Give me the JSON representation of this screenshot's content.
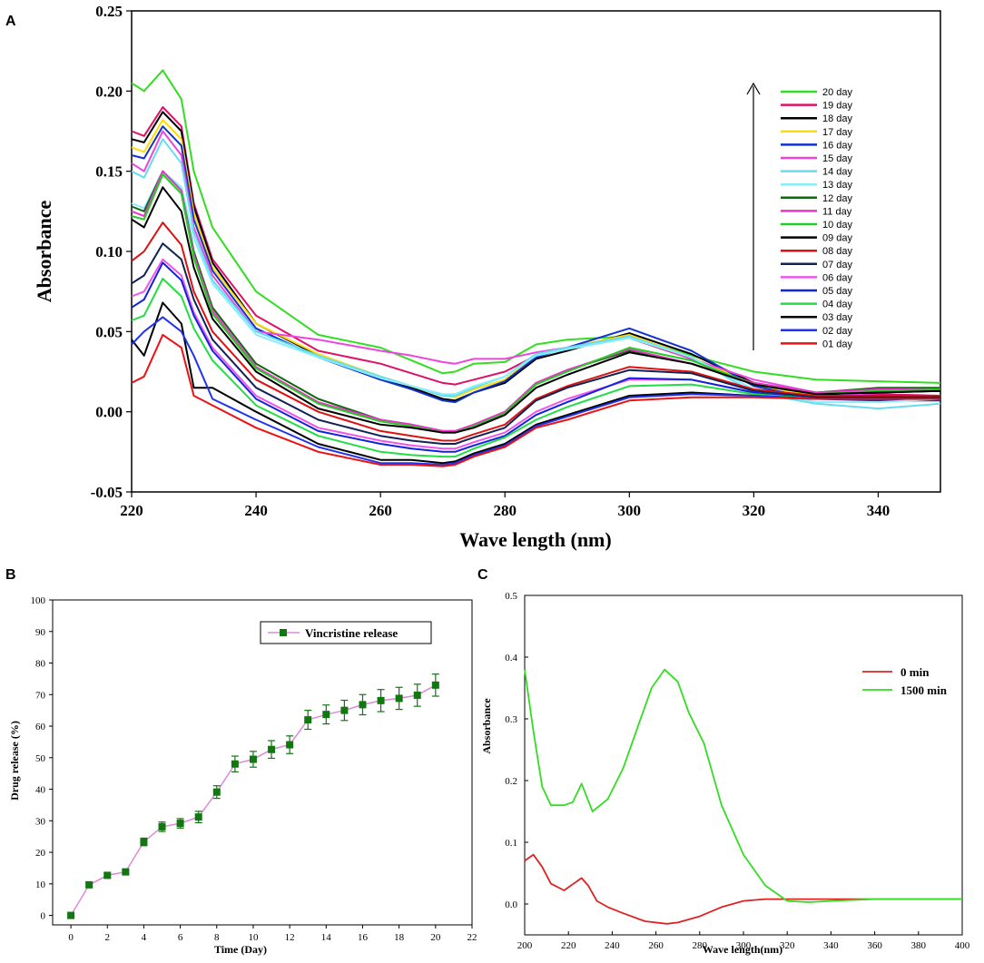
{
  "panels": {
    "a": "A",
    "b": "B",
    "c": "C"
  },
  "chart_data": [
    {
      "type": "line",
      "panel": "A",
      "title": "",
      "xlabel": "Wave length (nm)",
      "ylabel": "Absorbance",
      "xlim": [
        220,
        350
      ],
      "ylim": [
        -0.05,
        0.25
      ],
      "xticks": [
        220,
        240,
        260,
        280,
        300,
        320,
        340
      ],
      "yticks": [
        "-0.05",
        "0.00",
        "0.05",
        "0.10",
        "0.15",
        "0.20",
        "0.25"
      ],
      "annotation": "arrow indicating increasing absorbance with time",
      "x": [
        220,
        222,
        225,
        228,
        230,
        233,
        240,
        250,
        260,
        265,
        270,
        272,
        275,
        280,
        285,
        290,
        300,
        310,
        320,
        330,
        340,
        350
      ],
      "series": [
        {
          "name": "20 day",
          "color": "#33dd22",
          "values": [
            0.205,
            0.2,
            0.213,
            0.195,
            0.15,
            0.115,
            0.075,
            0.048,
            0.04,
            0.032,
            0.024,
            0.025,
            0.03,
            0.031,
            0.042,
            0.045,
            0.047,
            0.035,
            0.025,
            0.02,
            0.019,
            0.018
          ]
        },
        {
          "name": "19 day",
          "color": "#dd1166",
          "values": [
            0.175,
            0.172,
            0.19,
            0.178,
            0.13,
            0.095,
            0.06,
            0.038,
            0.03,
            0.024,
            0.018,
            0.017,
            0.02,
            0.025,
            0.035,
            0.04,
            0.046,
            0.033,
            0.018,
            0.012,
            0.011,
            0.01
          ]
        },
        {
          "name": "18 day",
          "color": "#000000",
          "values": [
            0.17,
            0.168,
            0.187,
            0.175,
            0.128,
            0.093,
            0.055,
            0.035,
            0.02,
            0.015,
            0.008,
            0.007,
            0.012,
            0.018,
            0.033,
            0.038,
            0.049,
            0.036,
            0.018,
            0.01,
            0.012,
            0.013
          ]
        },
        {
          "name": "17 day",
          "color": "#ffdd00",
          "values": [
            0.165,
            0.162,
            0.182,
            0.17,
            0.124,
            0.09,
            0.055,
            0.036,
            0.022,
            0.016,
            0.01,
            0.009,
            0.014,
            0.02,
            0.035,
            0.04,
            0.048,
            0.034,
            0.017,
            0.01,
            0.01,
            0.009
          ]
        },
        {
          "name": "16 day",
          "color": "#1133cc",
          "values": [
            0.16,
            0.158,
            0.178,
            0.166,
            0.12,
            0.088,
            0.052,
            0.034,
            0.02,
            0.014,
            0.007,
            0.006,
            0.012,
            0.019,
            0.034,
            0.04,
            0.052,
            0.038,
            0.016,
            0.008,
            0.007,
            0.007
          ]
        },
        {
          "name": "15 day",
          "color": "#ee44dd",
          "values": [
            0.155,
            0.15,
            0.175,
            0.16,
            0.115,
            0.085,
            0.05,
            0.045,
            0.038,
            0.035,
            0.031,
            0.03,
            0.033,
            0.033,
            0.037,
            0.04,
            0.047,
            0.033,
            0.02,
            0.012,
            0.01,
            0.01
          ]
        },
        {
          "name": "14 day",
          "color": "#66ddee",
          "values": [
            0.15,
            0.146,
            0.17,
            0.155,
            0.112,
            0.082,
            0.05,
            0.035,
            0.022,
            0.016,
            0.01,
            0.01,
            0.015,
            0.022,
            0.036,
            0.04,
            0.047,
            0.034,
            0.012,
            0.005,
            0.002,
            0.005
          ]
        },
        {
          "name": "13 day",
          "color": "#88eeff",
          "values": [
            0.13,
            0.127,
            0.15,
            0.14,
            0.108,
            0.08,
            0.048,
            0.034,
            0.021,
            0.016,
            0.011,
            0.011,
            0.016,
            0.022,
            0.035,
            0.039,
            0.046,
            0.034,
            0.014,
            0.006,
            0.006,
            0.008
          ]
        },
        {
          "name": "12 day",
          "color": "#116611",
          "values": [
            0.128,
            0.125,
            0.15,
            0.138,
            0.1,
            0.065,
            0.03,
            0.008,
            -0.005,
            -0.008,
            -0.012,
            -0.012,
            -0.008,
            0.0,
            0.018,
            0.026,
            0.038,
            0.03,
            0.018,
            0.012,
            0.015,
            0.015
          ]
        },
        {
          "name": "11 day",
          "color": "#ee33cc",
          "values": [
            0.125,
            0.122,
            0.15,
            0.138,
            0.098,
            0.063,
            0.028,
            0.006,
            -0.005,
            -0.008,
            -0.012,
            -0.012,
            -0.008,
            0.0,
            0.018,
            0.026,
            0.039,
            0.03,
            0.018,
            0.012,
            0.014,
            0.014
          ]
        },
        {
          "name": "10 day",
          "color": "#22cc22",
          "values": [
            0.122,
            0.12,
            0.148,
            0.136,
            0.096,
            0.061,
            0.027,
            0.005,
            -0.006,
            -0.009,
            -0.013,
            -0.013,
            -0.009,
            -0.001,
            0.017,
            0.025,
            0.04,
            0.032,
            0.017,
            0.011,
            0.013,
            0.014
          ]
        },
        {
          "name": "09 day",
          "color": "#000000",
          "values": [
            0.12,
            0.115,
            0.14,
            0.125,
            0.09,
            0.058,
            0.025,
            0.002,
            -0.008,
            -0.01,
            -0.013,
            -0.013,
            -0.01,
            -0.002,
            0.015,
            0.023,
            0.037,
            0.03,
            0.017,
            0.011,
            0.012,
            0.013
          ]
        },
        {
          "name": "08 day",
          "color": "#dd1111",
          "values": [
            0.094,
            0.1,
            0.118,
            0.104,
            0.075,
            0.05,
            0.02,
            0.0,
            -0.012,
            -0.015,
            -0.018,
            -0.018,
            -0.014,
            -0.008,
            0.008,
            0.016,
            0.028,
            0.025,
            0.014,
            0.01,
            0.01,
            0.01
          ]
        },
        {
          "name": "07 day",
          "color": "#112255",
          "values": [
            0.08,
            0.085,
            0.105,
            0.095,
            0.07,
            0.045,
            0.015,
            -0.005,
            -0.015,
            -0.018,
            -0.02,
            -0.02,
            -0.016,
            -0.01,
            0.007,
            0.015,
            0.026,
            0.024,
            0.013,
            0.009,
            0.009,
            0.009
          ]
        },
        {
          "name": "06 day",
          "color": "#ee55ee",
          "values": [
            0.072,
            0.075,
            0.095,
            0.085,
            0.062,
            0.04,
            0.01,
            -0.01,
            -0.018,
            -0.021,
            -0.023,
            -0.023,
            -0.019,
            -0.013,
            0.0,
            0.008,
            0.02,
            0.02,
            0.012,
            0.008,
            0.008,
            0.008
          ]
        },
        {
          "name": "05 day",
          "color": "#1122dd",
          "values": [
            0.065,
            0.07,
            0.093,
            0.082,
            0.06,
            0.038,
            0.008,
            -0.012,
            -0.02,
            -0.023,
            -0.025,
            -0.025,
            -0.021,
            -0.015,
            -0.002,
            0.006,
            0.021,
            0.02,
            0.012,
            0.008,
            0.008,
            0.008
          ]
        },
        {
          "name": "04 day",
          "color": "#22dd44",
          "values": [
            0.057,
            0.06,
            0.083,
            0.072,
            0.052,
            0.032,
            0.004,
            -0.015,
            -0.025,
            -0.027,
            -0.028,
            -0.028,
            -0.023,
            -0.016,
            -0.005,
            0.003,
            0.016,
            0.017,
            0.011,
            0.008,
            0.008,
            0.008
          ]
        },
        {
          "name": "03 day",
          "color": "#000000",
          "values": [
            0.045,
            0.035,
            0.068,
            0.055,
            0.015,
            0.015,
            0.0,
            -0.02,
            -0.03,
            -0.03,
            -0.032,
            -0.031,
            -0.026,
            -0.02,
            -0.008,
            -0.002,
            0.01,
            0.012,
            0.01,
            0.008,
            0.008,
            0.008
          ]
        },
        {
          "name": "02 day",
          "color": "#2233ee",
          "values": [
            0.042,
            0.05,
            0.059,
            0.05,
            0.035,
            0.008,
            -0.005,
            -0.022,
            -0.032,
            -0.032,
            -0.033,
            -0.032,
            -0.027,
            -0.021,
            -0.009,
            -0.003,
            0.009,
            0.011,
            0.01,
            0.008,
            0.008,
            0.008
          ]
        },
        {
          "name": "01 day",
          "color": "#ee1111",
          "values": [
            0.018,
            0.022,
            0.048,
            0.04,
            0.01,
            0.004,
            -0.01,
            -0.025,
            -0.033,
            -0.033,
            -0.034,
            -0.033,
            -0.028,
            -0.022,
            -0.01,
            -0.005,
            0.007,
            0.009,
            0.009,
            0.008,
            0.008,
            0.008
          ]
        }
      ]
    },
    {
      "type": "line",
      "panel": "B",
      "title": "",
      "xlabel": "Time (Day)",
      "ylabel": "Drug release (%)",
      "xlim": [
        -1,
        22
      ],
      "ylim": [
        -3,
        100
      ],
      "xticks": [
        0,
        2,
        4,
        6,
        8,
        10,
        12,
        14,
        16,
        18,
        20,
        22
      ],
      "yticks": [
        0,
        10,
        20,
        30,
        40,
        50,
        60,
        70,
        80,
        90,
        100
      ],
      "legend": "top-right",
      "series": [
        {
          "name": "Vincristine release",
          "line_color": "#dd88dd",
          "marker_color": "#117711",
          "x": [
            0,
            1,
            2,
            3,
            4,
            5,
            6,
            7,
            8,
            9,
            10,
            11,
            12,
            13,
            14,
            15,
            16,
            17,
            18,
            19,
            20
          ],
          "values": [
            0,
            9.7,
            12.7,
            13.8,
            23.3,
            28.1,
            29.2,
            31.2,
            39.1,
            48.0,
            49.5,
            52.6,
            54.1,
            62.0,
            63.7,
            65.0,
            66.8,
            68.1,
            68.8,
            69.8,
            73.0
          ],
          "errors": [
            0,
            0.6,
            0.7,
            0.8,
            1.2,
            1.5,
            1.5,
            1.8,
            2.0,
            2.5,
            2.5,
            2.8,
            2.8,
            3.0,
            3.0,
            3.2,
            3.2,
            3.5,
            3.5,
            3.5,
            3.5
          ]
        }
      ]
    },
    {
      "type": "line",
      "panel": "C",
      "title": "",
      "xlabel": "Wave length(nm)",
      "ylabel": "Absorbance",
      "xlim": [
        200,
        400
      ],
      "ylim": [
        -0.05,
        0.5
      ],
      "xticks": [
        200,
        220,
        240,
        260,
        280,
        300,
        320,
        340,
        360,
        380,
        400
      ],
      "yticks": [
        "0.0",
        "0.1",
        "0.2",
        "0.3",
        "0.4",
        "0.5"
      ],
      "legend": "top-right",
      "series": [
        {
          "name": "0 min",
          "color": "#dd2222",
          "x": [
            200,
            204,
            208,
            212,
            218,
            222,
            226,
            229,
            233,
            238,
            245,
            255,
            265,
            270,
            280,
            290,
            300,
            310,
            320,
            340,
            360,
            380,
            400
          ],
          "values": [
            0.07,
            0.08,
            0.06,
            0.033,
            0.022,
            0.032,
            0.042,
            0.03,
            0.005,
            -0.005,
            -0.015,
            -0.028,
            -0.032,
            -0.03,
            -0.02,
            -0.005,
            0.005,
            0.008,
            0.008,
            0.008,
            0.008,
            0.008,
            0.008
          ]
        },
        {
          "name": "1500 min",
          "color": "#33dd22",
          "x": [
            200,
            204,
            208,
            212,
            218,
            222,
            226,
            231,
            238,
            245,
            252,
            258,
            264,
            270,
            275,
            282,
            290,
            300,
            310,
            320,
            330,
            340,
            360,
            380,
            400
          ],
          "values": [
            0.38,
            0.28,
            0.19,
            0.16,
            0.16,
            0.165,
            0.195,
            0.15,
            0.17,
            0.22,
            0.29,
            0.35,
            0.38,
            0.36,
            0.31,
            0.26,
            0.16,
            0.08,
            0.03,
            0.005,
            0.003,
            0.005,
            0.008,
            0.008,
            0.008
          ]
        }
      ]
    }
  ]
}
